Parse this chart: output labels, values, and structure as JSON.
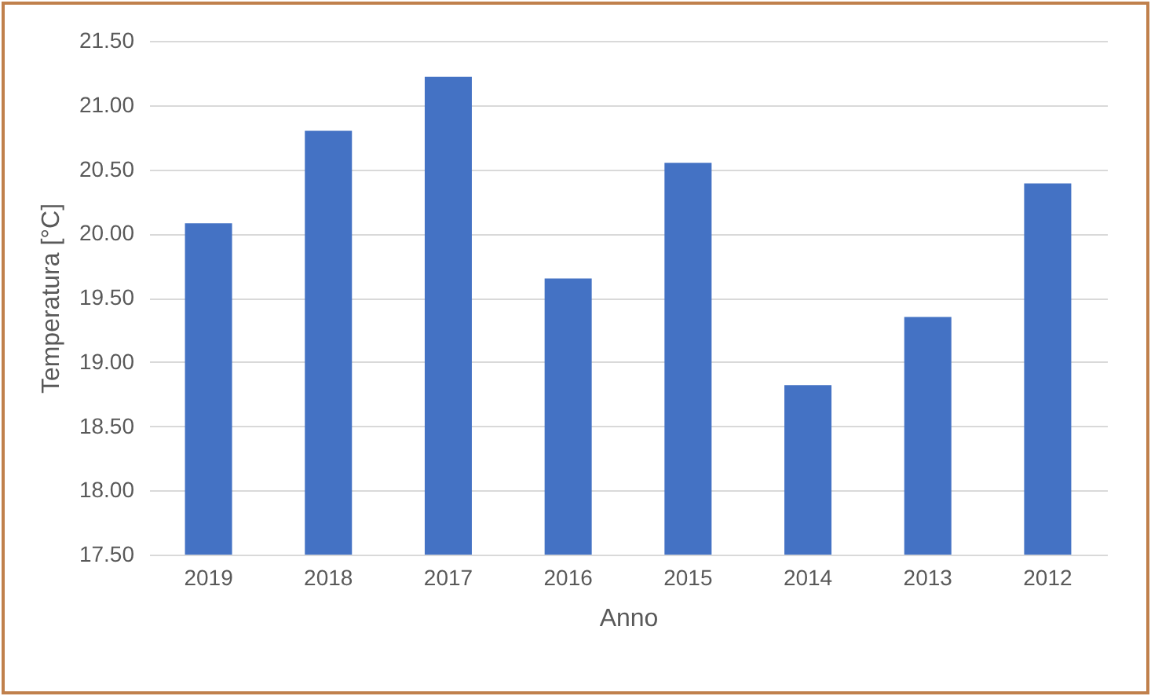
{
  "chart_data": {
    "type": "bar",
    "xlabel": "Anno",
    "ylabel": "Temperatura [°C]",
    "categories": [
      "2019",
      "2018",
      "2017",
      "2016",
      "2015",
      "2014",
      "2013",
      "2012"
    ],
    "values": [
      20.08,
      20.8,
      21.22,
      19.65,
      20.55,
      18.82,
      19.35,
      20.39
    ],
    "color": "#4472c4",
    "ylim": [
      17.5,
      21.5
    ],
    "yticks": [
      {
        "value": 17.5,
        "label": "17.50"
      },
      {
        "value": 18,
        "label": "18.00"
      },
      {
        "value": 18.5,
        "label": "18.50"
      },
      {
        "value": 19,
        "label": "19.00"
      },
      {
        "value": 19.5,
        "label": "19.50"
      },
      {
        "value": 20,
        "label": "20.00"
      },
      {
        "value": 20.5,
        "label": "20.50"
      },
      {
        "value": 21,
        "label": "21.00"
      },
      {
        "value": 21.5,
        "label": "21.50"
      }
    ],
    "grid": "y"
  }
}
